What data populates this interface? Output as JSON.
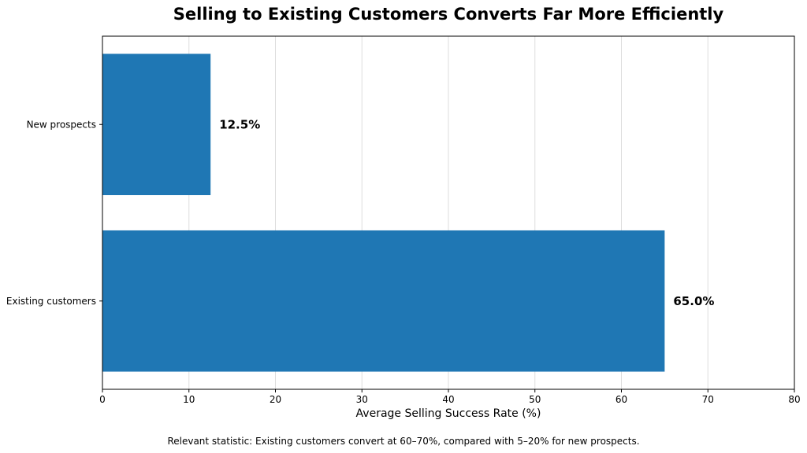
{
  "chart_data": {
    "type": "bar",
    "orientation": "horizontal",
    "title": "Selling to Existing Customers Converts Far More Efficiently",
    "xlabel": "Average Selling Success Rate (%)",
    "ylabel": "",
    "categories": [
      "New prospects",
      "Existing customers"
    ],
    "values": [
      12.5,
      65.0
    ],
    "data_labels": [
      "12.5%",
      "65.0%"
    ],
    "xlim": [
      0,
      80
    ],
    "xticks": [
      0,
      10,
      20,
      30,
      40,
      50,
      60,
      70,
      80
    ],
    "grid": "vertical",
    "legend": "none",
    "bar_color": "#1f77b4",
    "footnote": "Relevant statistic: Existing customers convert at 60–70%, compared with 5–20% for new prospects."
  }
}
